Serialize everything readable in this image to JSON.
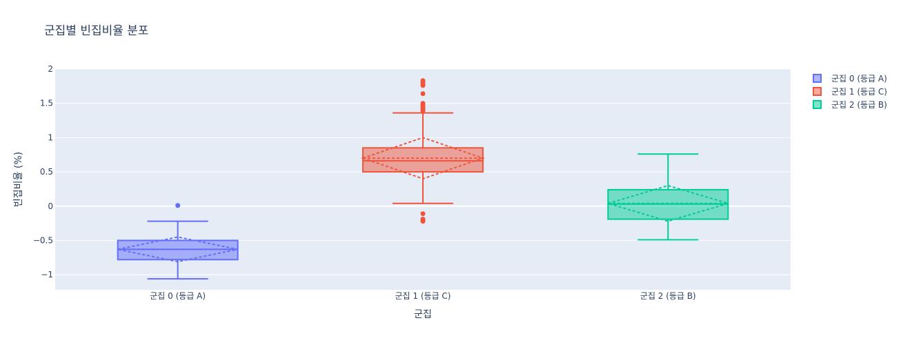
{
  "chart_data": {
    "type": "box",
    "title": "군집별 빈집비율 분포",
    "xlabel": "군집",
    "ylabel": "빈집비율 (%)",
    "ylim": [
      -1.22,
      2.0
    ],
    "yticks": [
      -1,
      -0.5,
      0,
      0.5,
      1,
      1.5,
      2
    ],
    "ytick_labels": [
      "−1",
      "−0.5",
      "0",
      "0.5",
      "1",
      "1.5",
      "2"
    ],
    "categories": [
      "군집 0 (등급 A)",
      "군집 1 (등급 C)",
      "군집 2 (등급 B)"
    ],
    "legend_position": "top-right",
    "grid": true,
    "series": [
      {
        "name": "군집 0 (등급 A)",
        "color": "#636efa",
        "fill": "rgba(99,110,250,0.5)",
        "lowerfence": -1.06,
        "q1": -0.78,
        "median": -0.63,
        "q3": -0.5,
        "upperfence": -0.22,
        "mean": -0.63,
        "sd": 0.18,
        "outliers": [
          0.01
        ]
      },
      {
        "name": "군집 1 (등급 C)",
        "color": "#ef553b",
        "fill": "rgba(239,85,59,0.5)",
        "lowerfence": 0.04,
        "q1": 0.5,
        "median": 0.66,
        "q3": 0.85,
        "upperfence": 1.36,
        "mean": 0.7,
        "sd": 0.3,
        "outliers": [
          1.83,
          1.81,
          1.78,
          1.76,
          1.64,
          1.5,
          1.48,
          1.46,
          1.43,
          1.41,
          1.39,
          -0.11,
          -0.19,
          -0.21,
          -0.22
        ]
      },
      {
        "name": "군집 2 (등급 B)",
        "color": "#00cc96",
        "fill": "rgba(0,204,150,0.5)",
        "lowerfence": -0.49,
        "q1": -0.19,
        "median": 0.03,
        "q3": 0.24,
        "upperfence": 0.76,
        "mean": 0.04,
        "sd": 0.26,
        "outliers": []
      }
    ]
  }
}
